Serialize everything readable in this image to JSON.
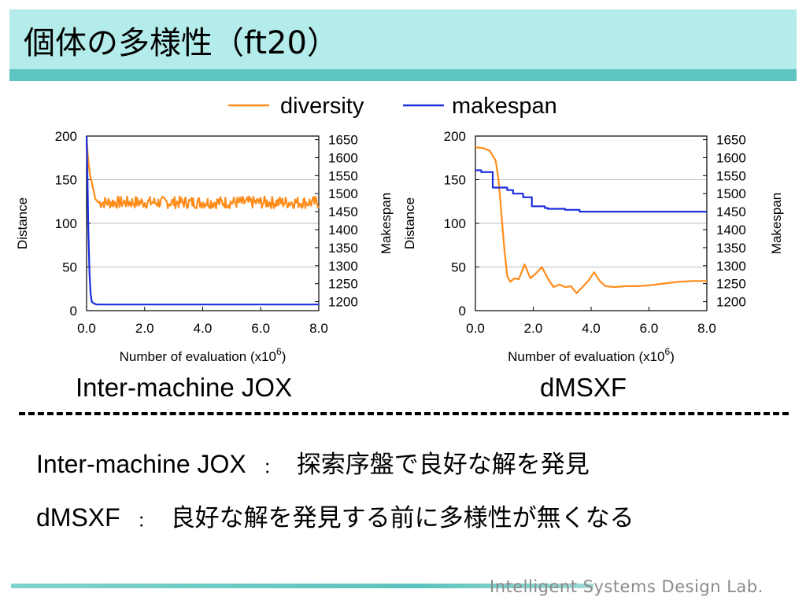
{
  "slide": {
    "title": "個体の多様性（ft20）",
    "footer": "Intelligent Systems Design Lab."
  },
  "legend": {
    "diversity": "diversity",
    "makespan": "makespan"
  },
  "colors": {
    "diversity": "#ff8c1a",
    "makespan": "#1a2ee0",
    "title_band": "#b3ecea",
    "title_underline": "#5fc5c2"
  },
  "chart_data": [
    {
      "type": "line",
      "caption": "Inter-machine JOX",
      "xlabel": "Number of evaluation (x10",
      "xlabel_sup": "6",
      "xlabel_end": ")",
      "ylabel_left": "Distance",
      "ylabel_right": "Makespan",
      "xlim": [
        0,
        8
      ],
      "ylim_left": [
        0,
        200
      ],
      "ylim_right": [
        1175,
        1660
      ],
      "x_ticks": [
        "0.0",
        "2.0",
        "4.0",
        "6.0",
        "8.0"
      ],
      "y_ticks_left": [
        "0",
        "50",
        "100",
        "150",
        "200"
      ],
      "y_ticks_right": [
        "1200",
        "1250",
        "1300",
        "1350",
        "1400",
        "1450",
        "1500",
        "1550",
        "1600",
        "1650"
      ],
      "grid": true,
      "series": [
        {
          "name": "diversity",
          "axis": "left",
          "note": "rapid drop then noisy plateau",
          "x": [
            0,
            0.04,
            0.08,
            0.12,
            0.16,
            0.2,
            0.25,
            0.3,
            0.4
          ],
          "values": [
            200,
            178,
            165,
            155,
            150,
            144,
            136,
            128,
            124
          ],
          "plateau_mean": 124,
          "plateau_noise": 7
        },
        {
          "name": "makespan",
          "axis": "right",
          "x": [
            0,
            0.03,
            0.06,
            0.1,
            0.14,
            0.18,
            0.25,
            0.35,
            0.45,
            8.0
          ],
          "values": [
            1660,
            1550,
            1400,
            1280,
            1220,
            1200,
            1195,
            1192,
            1192,
            1192
          ]
        }
      ]
    },
    {
      "type": "line",
      "caption": "dMSXF",
      "xlabel": "Number of evaluation (x10",
      "xlabel_sup": "6",
      "xlabel_end": ")",
      "ylabel_left": "Distance",
      "ylabel_right": "Makespan",
      "xlim": [
        0,
        8
      ],
      "ylim_left": [
        0,
        200
      ],
      "ylim_right": [
        1175,
        1660
      ],
      "x_ticks": [
        "0.0",
        "2.0",
        "4.0",
        "6.0",
        "8.0"
      ],
      "y_ticks_left": [
        "0",
        "50",
        "100",
        "150",
        "200"
      ],
      "y_ticks_right": [
        "1200",
        "1250",
        "1300",
        "1350",
        "1400",
        "1450",
        "1500",
        "1550",
        "1600",
        "1650"
      ],
      "grid": true,
      "series": [
        {
          "name": "diversity",
          "axis": "left",
          "x": [
            0,
            0.3,
            0.5,
            0.7,
            0.8,
            0.9,
            1.0,
            1.1,
            1.2,
            1.35,
            1.5,
            1.7,
            1.9,
            2.1,
            2.3,
            2.5,
            2.7,
            2.9,
            3.1,
            3.3,
            3.5,
            3.7,
            3.9,
            4.1,
            4.3,
            4.5,
            4.8,
            5.2,
            5.6,
            6.0,
            6.5,
            7.0,
            7.5,
            8.0
          ],
          "values": [
            187,
            186,
            183,
            172,
            150,
            110,
            70,
            40,
            33,
            37,
            36,
            53,
            37,
            43,
            50,
            37,
            27,
            30,
            27,
            28,
            20,
            27,
            34,
            44,
            34,
            28,
            27,
            28,
            28,
            29,
            31,
            33,
            34,
            34
          ]
        },
        {
          "name": "makespan",
          "axis": "right",
          "x": [
            0,
            0.2,
            0.2,
            0.6,
            0.6,
            1.1,
            1.1,
            1.3,
            1.3,
            1.65,
            1.65,
            1.95,
            1.95,
            2.4,
            2.4,
            2.5,
            2.5,
            3.1,
            3.1,
            3.6,
            3.6,
            8.0
          ],
          "values": [
            1565,
            1565,
            1560,
            1560,
            1517,
            1517,
            1510,
            1510,
            1500,
            1500,
            1490,
            1490,
            1465,
            1465,
            1460,
            1460,
            1458,
            1458,
            1455,
            1455,
            1450,
            1450
          ]
        }
      ]
    }
  ],
  "notes": [
    {
      "method": "Inter-machine JOX",
      "sep": "：",
      "text": "探索序盤で良好な解を発見"
    },
    {
      "method": "dMSXF",
      "sep": "：",
      "text": "良好な解を発見する前に多様性が無くなる"
    }
  ]
}
